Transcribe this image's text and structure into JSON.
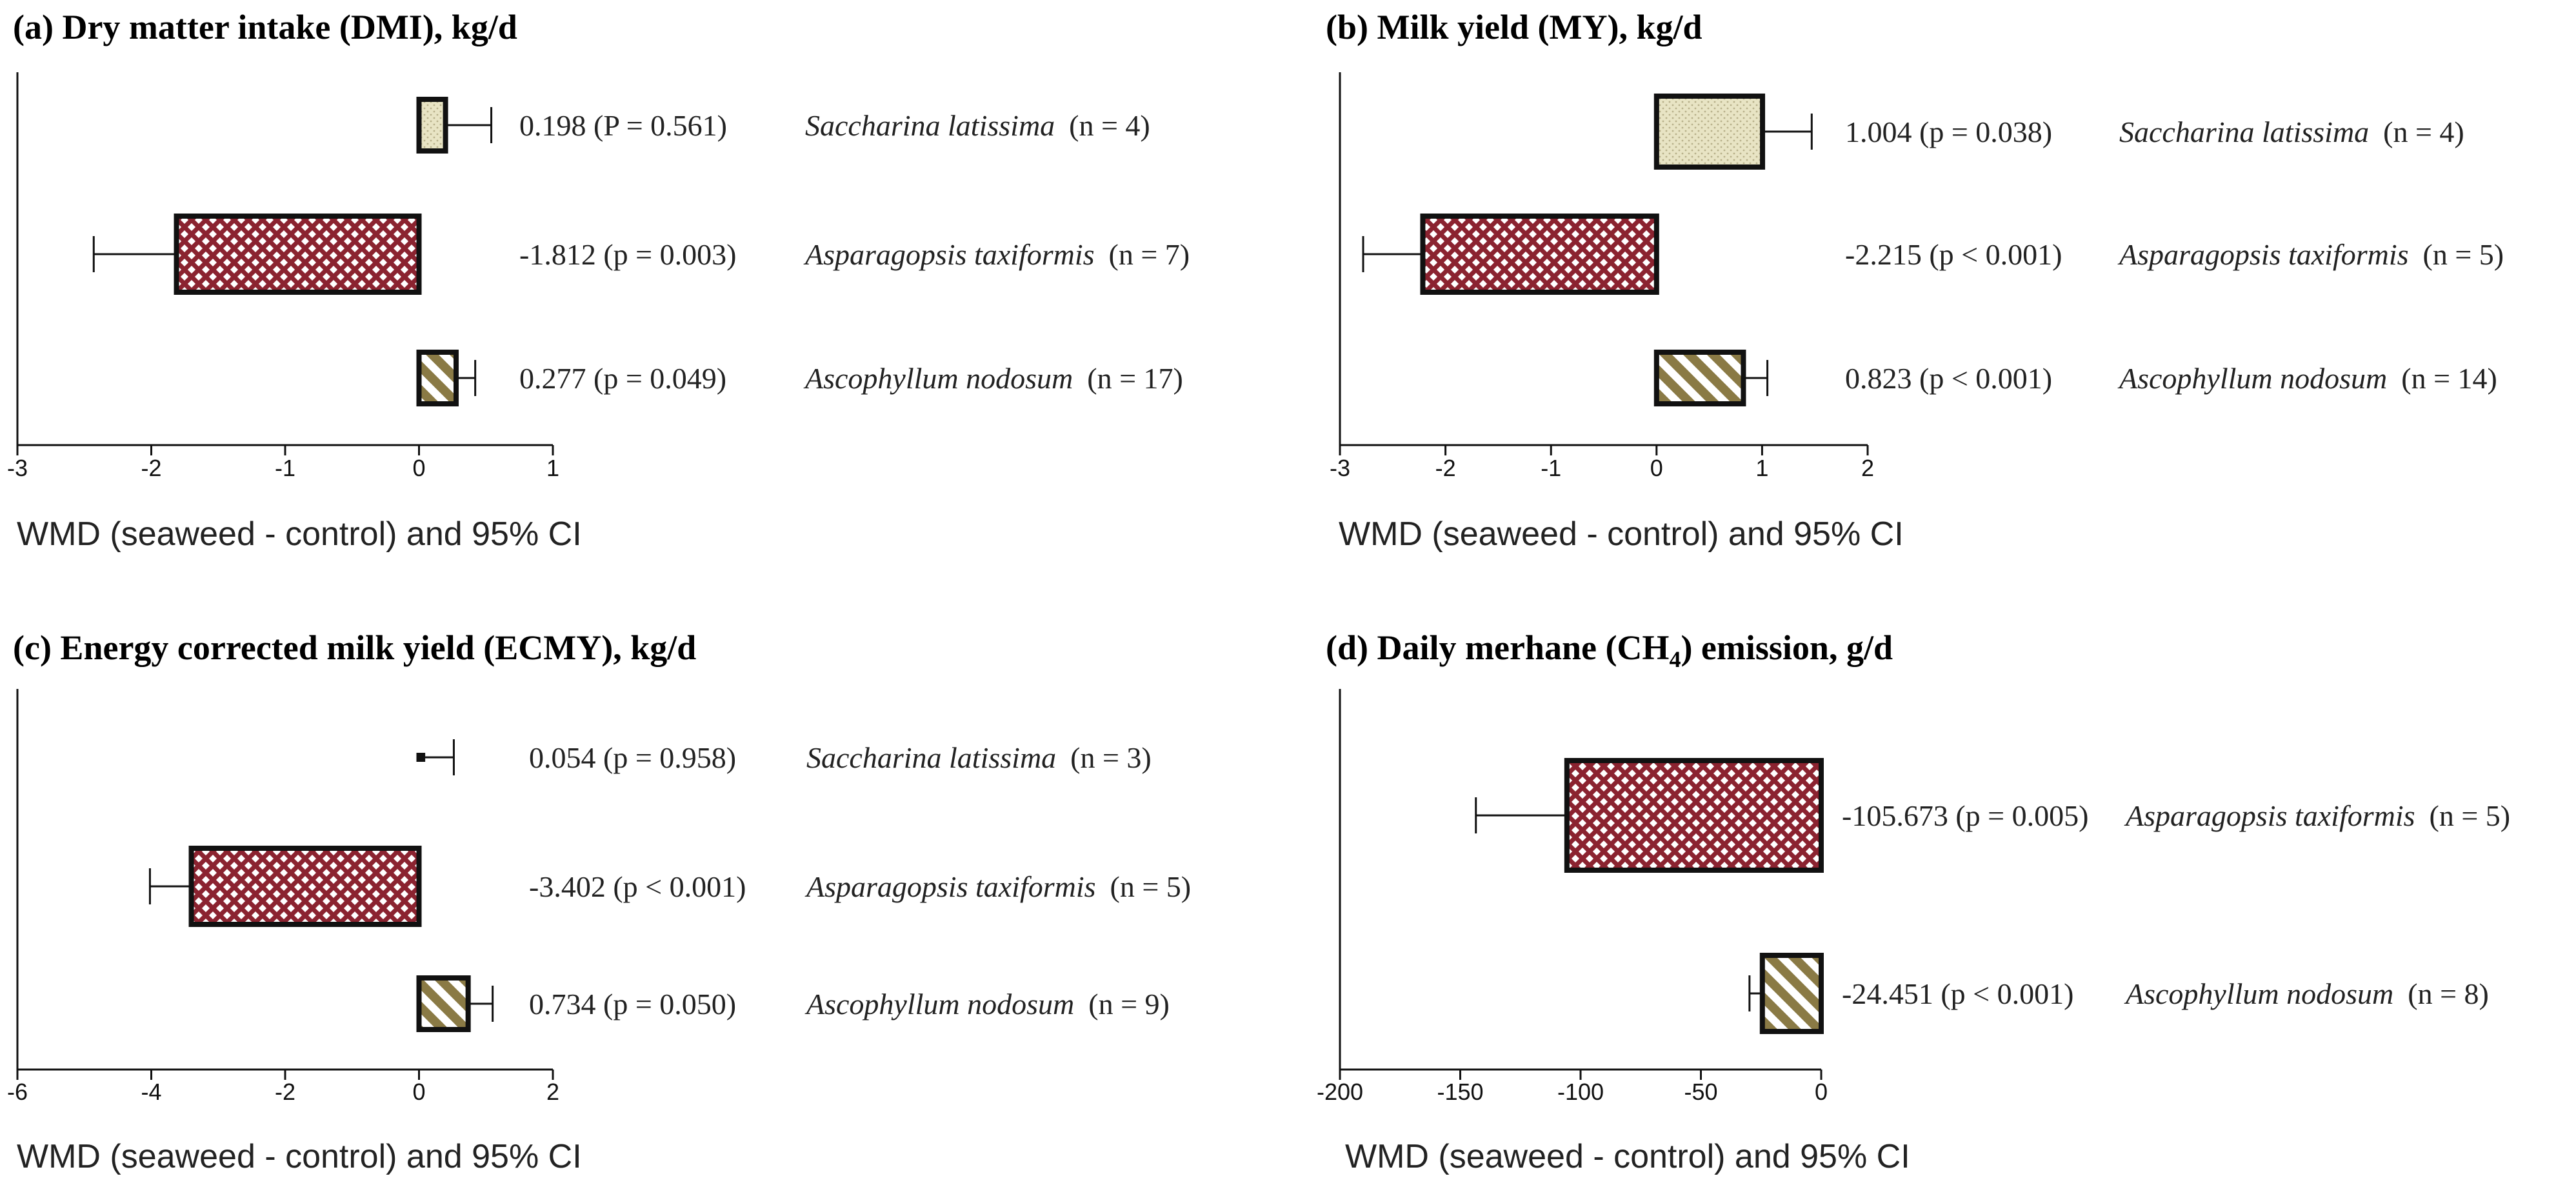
{
  "figure": {
    "colors": {
      "saccharina_fill": "#e8e4c4",
      "saccharina_dot": "#b7b08a",
      "asparagopsis_fill": "#ffffff",
      "asparagopsis_pattern": "#8b2330",
      "ascophyllum_fill": "#ffffff",
      "ascophyllum_stripe": "#8a7a45",
      "bar_stroke": "#111111"
    }
  },
  "chart_data": [
    {
      "type": "bar",
      "orientation": "horizontal",
      "title": "(a) Dry matter intake (DMI), kg/d",
      "xlabel": "WMD (seaweed - control) and 95% CI",
      "xlim": [
        -3,
        1
      ],
      "xticks": [
        "-3",
        "-2",
        "-1",
        "0",
        "1"
      ],
      "bars": [
        {
          "species": "Saccharina latissima",
          "value": 0.198,
          "ci_upper": 0.54,
          "p_text": "0.198 (P = 0.561)",
          "n_text": "(n = 4)",
          "pattern": "dots"
        },
        {
          "species": "Asparagopsis taxiformis",
          "value": -1.812,
          "ci_lower": -2.43,
          "p_text": "-1.812 (p = 0.003)",
          "n_text": "(n = 7)",
          "pattern": "cross"
        },
        {
          "species": "Ascophyllum nodosum",
          "value": 0.277,
          "ci_upper": 0.42,
          "p_text": "0.277 (p = 0.049)",
          "n_text": "(n = 17)",
          "pattern": "stripes"
        }
      ]
    },
    {
      "type": "bar",
      "orientation": "horizontal",
      "title": "(b) Milk yield (MY), kg/d",
      "xlabel": "WMD (seaweed - control) and 95% CI",
      "xlim": [
        -3,
        2
      ],
      "xticks": [
        "-3",
        "-2",
        "-1",
        "0",
        "1",
        "2"
      ],
      "bars": [
        {
          "species": "Saccharina latissima",
          "value": 1.004,
          "ci_upper": 1.47,
          "p_text": "1.004 (p = 0.038)",
          "n_text": "(n = 4)",
          "pattern": "dots"
        },
        {
          "species": "Asparagopsis taxiformis",
          "value": -2.215,
          "ci_lower": -2.78,
          "p_text": "-2.215 (p < 0.001)",
          "n_text": "(n = 5)",
          "pattern": "cross"
        },
        {
          "species": "Ascophyllum nodosum",
          "value": 0.823,
          "ci_upper": 1.05,
          "p_text": "0.823 (p < 0.001)",
          "n_text": "(n = 14)",
          "pattern": "stripes"
        }
      ]
    },
    {
      "type": "bar",
      "orientation": "horizontal",
      "title": "(c) Energy corrected milk yield (ECMY), kg/d",
      "xlabel": "WMD (seaweed - control) and 95% CI",
      "xlim": [
        -6,
        2
      ],
      "xticks": [
        "-6",
        "-4",
        "-2",
        "0",
        "2"
      ],
      "bars": [
        {
          "species": "Saccharina latissima",
          "value": 0.054,
          "ci_upper": 0.52,
          "p_text": "0.054 (p = 0.958)",
          "n_text": "(n = 3)",
          "pattern": "dots"
        },
        {
          "species": "Asparagopsis taxiformis",
          "value": -3.402,
          "ci_lower": -4.02,
          "p_text": "-3.402 (p < 0.001)",
          "n_text": "(n = 5)",
          "pattern": "cross"
        },
        {
          "species": "Ascophyllum nodosum",
          "value": 0.734,
          "ci_upper": 1.1,
          "p_text": "0.734 (p = 0.050)",
          "n_text": "(n = 9)",
          "pattern": "stripes"
        }
      ]
    },
    {
      "type": "bar",
      "orientation": "horizontal",
      "title_prefix": "(d) Daily merhane (CH",
      "title_sub": "4",
      "title_suffix": ") emission, g/d",
      "xlabel": "WMD (seaweed - control) and 95% CI",
      "xlim": [
        -200,
        0
      ],
      "xticks": [
        "-200",
        "-150",
        "-100",
        "-50",
        "0"
      ],
      "bars": [
        {
          "species": "Asparagopsis taxiformis",
          "value": -105.673,
          "ci_lower": -143.5,
          "p_text": "-105.673 (p = 0.005)",
          "n_text": "(n = 5)",
          "pattern": "cross"
        },
        {
          "species": "Ascophyllum nodosum",
          "value": -24.451,
          "ci_lower": -29.8,
          "p_text": "-24.451 (p < 0.001)",
          "n_text": "(n = 8)",
          "pattern": "stripes"
        }
      ]
    }
  ]
}
